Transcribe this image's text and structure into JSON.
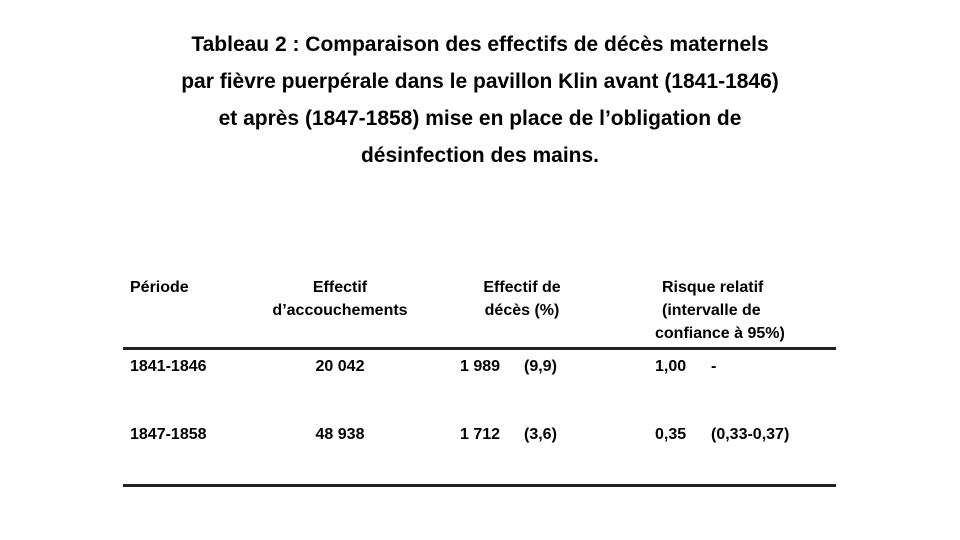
{
  "title": {
    "lines": [
      "Tableau 2 : Comparaison des effectifs de décès maternels",
      "par fièvre puerpérale dans le pavillon Klin avant (1841-1846)",
      "et après (1847-1858) mise en place de l’obligation de",
      "désinfection des mains."
    ]
  },
  "table": {
    "headers": {
      "period": "Période",
      "deliveries": [
        "Effectif",
        "d’accouchements"
      ],
      "deaths": [
        "Effectif de",
        "décès (%)"
      ],
      "risk": [
        "Risque relatif",
        "(intervalle de",
        "confiance à 95%)"
      ]
    },
    "rows": [
      {
        "period": "1841-1846",
        "deliveries": "20 042",
        "deaths_count": "1 989",
        "deaths_pct": "(9,9)",
        "risk": "1,00",
        "ci": "-"
      },
      {
        "period": "1847-1858",
        "deliveries": "48 938",
        "deaths_count": "1 712",
        "deaths_pct": "(3,6)",
        "risk": "0,35",
        "ci": "(0,33-0,37)"
      }
    ]
  }
}
